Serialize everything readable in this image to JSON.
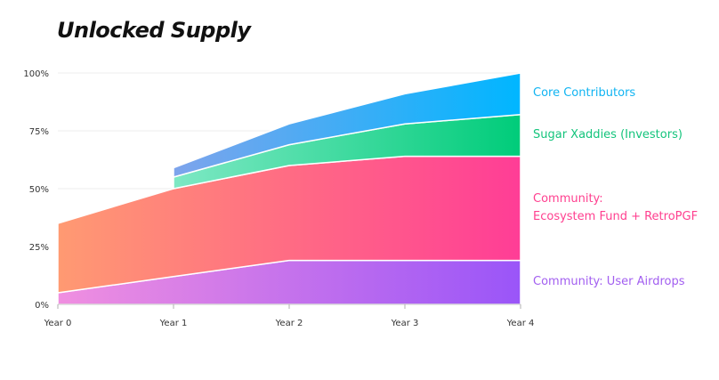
{
  "chart_data": {
    "type": "area",
    "title": "Unlocked Supply",
    "x": [
      "Year 0",
      "Year 1",
      "Year 2",
      "Year 3",
      "Year 4"
    ],
    "ylim": [
      0,
      100
    ],
    "yticks": [
      "0%",
      "25%",
      "50%",
      "75%",
      "100%"
    ],
    "stacked": true,
    "grid": true,
    "series": [
      {
        "name": "Community: User Airdrops",
        "label_lines": [
          "Community: User Airdrops"
        ],
        "color_start": "#f08fe0",
        "color_end": "#9a55f8",
        "label_color": "#a25ef0",
        "start_index": 0,
        "values": [
          5,
          12,
          19,
          19,
          19
        ]
      },
      {
        "name": "Community: Ecosystem Fund + RetroPGF",
        "label_lines": [
          "Community:",
          "Ecosystem Fund + RetroPGF"
        ],
        "color_start": "#ff9a72",
        "color_end": "#ff3d96",
        "label_color": "#ff3f8f",
        "start_index": 0,
        "values": [
          30,
          38,
          41,
          45,
          45
        ]
      },
      {
        "name": "Sugar Xaddies (Investors)",
        "label_lines": [
          "Sugar Xaddies (Investors)"
        ],
        "color_start": "#7ee8c4",
        "color_end": "#00cc7a",
        "label_color": "#14c47c",
        "start_index": 1,
        "values": [
          0,
          5,
          9,
          14,
          18
        ]
      },
      {
        "name": "Core Contributors",
        "label_lines": [
          "Core Contributors"
        ],
        "color_start": "#7ea4ec",
        "color_end": "#00b6ff",
        "label_color": "#10b4f2",
        "start_index": 1,
        "values": [
          0,
          4,
          9,
          13,
          18
        ]
      }
    ]
  }
}
